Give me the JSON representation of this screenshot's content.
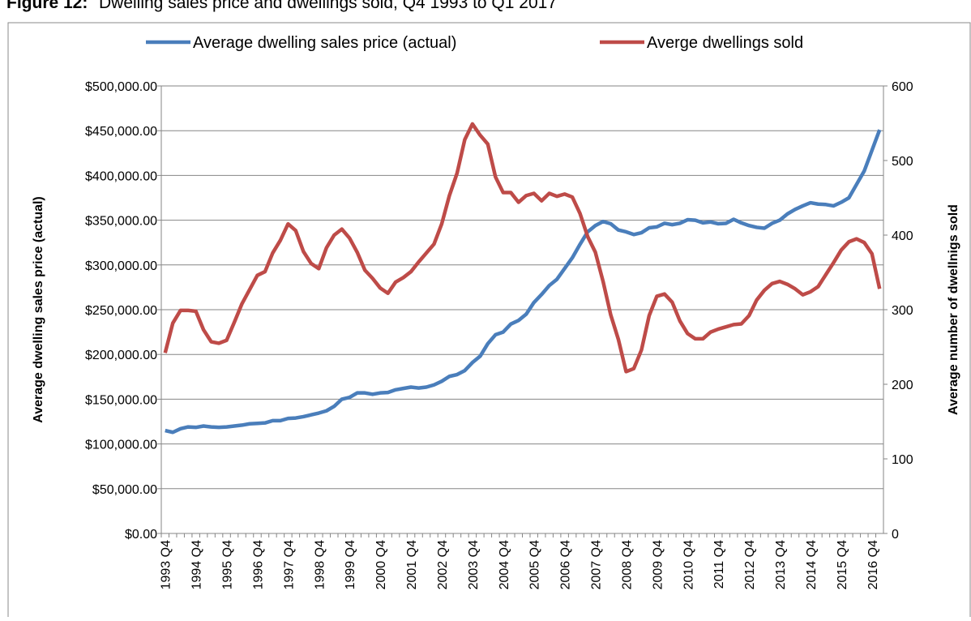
{
  "chart_data": {
    "type": "line",
    "title_label": "Figure 12:",
    "title": "Dwelling sales price and dwellings sold, Q4 1993 to Q1 2017",
    "y_label": "Average dwelling sales price (actual)",
    "y2_label": "Average number of dwellnigs sold",
    "categories": [
      "1993 Q4",
      null,
      null,
      null,
      "1994 Q4",
      null,
      null,
      null,
      "1995 Q4",
      null,
      null,
      null,
      "1996 Q4",
      null,
      null,
      null,
      "1997 Q4",
      null,
      null,
      null,
      "1998 Q4",
      null,
      null,
      null,
      "1999 Q4",
      null,
      null,
      null,
      "2000 Q4",
      null,
      null,
      null,
      "2001 Q4",
      null,
      null,
      null,
      "2002 Q4",
      null,
      null,
      null,
      "2003 Q4",
      null,
      null,
      null,
      "2004 Q4",
      null,
      null,
      null,
      "2005 Q4",
      null,
      null,
      null,
      "2006 Q4",
      null,
      null,
      null,
      "2007 Q4",
      null,
      null,
      null,
      "2008 Q4",
      null,
      null,
      null,
      "2009 Q4",
      null,
      null,
      null,
      "2010 Q4",
      null,
      null,
      null,
      "2011 Q4",
      null,
      null,
      null,
      "2012 Q4",
      null,
      null,
      null,
      "2013 Q4",
      null,
      null,
      null,
      "2014 Q4",
      null,
      null,
      null,
      "2015 Q4",
      null,
      null,
      null,
      "2016 Q4",
      null
    ],
    "series": [
      {
        "name": "Average dwelling sales price (actual)",
        "color": "#4a7ebb",
        "values": [
          115000,
          113000,
          117000,
          119000,
          118500,
          120000,
          119000,
          118500,
          119000,
          120000,
          121000,
          122500,
          123000,
          123500,
          126000,
          126000,
          128500,
          129000,
          130500,
          132500,
          134500,
          137000,
          142000,
          150000,
          152000,
          157000,
          157000,
          155500,
          157000,
          157500,
          160500,
          162000,
          163500,
          162500,
          163500,
          166000,
          170000,
          175500,
          177500,
          182000,
          191000,
          198000,
          212000,
          222000,
          225000,
          234000,
          238000,
          245000,
          258000,
          267000,
          277000,
          284000,
          296000,
          308000,
          323000,
          337000,
          344000,
          348500,
          346000,
          339000,
          337000,
          334000,
          336000,
          341500,
          342500,
          346500,
          345000,
          346500,
          350500,
          350000,
          347000,
          348000,
          346000,
          346500,
          351000,
          347000,
          344000,
          342000,
          341000,
          346500,
          350000,
          357000,
          362000,
          366000,
          369500,
          368000,
          367500,
          366000,
          370000,
          375000,
          390000,
          405000,
          428000,
          451000
        ]
      },
      {
        "name": "Averge dwellings sold",
        "color": "#be4b48",
        "axis": "y2",
        "values": [
          242,
          282,
          299,
          299,
          298,
          273,
          257,
          255,
          259,
          283,
          308,
          327,
          346,
          351,
          376,
          393,
          415,
          406,
          378,
          362,
          355,
          383,
          400,
          408,
          396,
          377,
          353,
          342,
          329,
          322,
          337,
          343,
          351,
          364,
          376,
          388,
          415,
          453,
          483,
          528,
          549,
          534,
          522,
          478,
          457,
          457,
          444,
          453,
          456,
          446,
          456,
          452,
          455,
          451,
          429,
          398,
          377,
          338,
          293,
          260,
          217,
          221,
          246,
          292,
          318,
          321,
          310,
          285,
          268,
          261,
          261,
          270,
          274,
          277,
          280,
          281,
          292,
          313,
          326,
          335,
          338,
          334,
          328,
          320,
          324,
          331,
          347,
          363,
          380,
          391,
          395,
          390,
          375,
          328
        ]
      }
    ],
    "ylim": [
      0,
      500000
    ],
    "yticks": [
      {
        "value": 0,
        "label": "$0.00"
      },
      {
        "value": 50000,
        "label": "$50,000.00"
      },
      {
        "value": 100000,
        "label": "$100,000.00"
      },
      {
        "value": 150000,
        "label": "$150,000.00"
      },
      {
        "value": 200000,
        "label": "$200,000.00"
      },
      {
        "value": 250000,
        "label": "$250,000.00"
      },
      {
        "value": 300000,
        "label": "$300,000.00"
      },
      {
        "value": 350000,
        "label": "$350,000.00"
      },
      {
        "value": 400000,
        "label": "$400,000.00"
      },
      {
        "value": 450000,
        "label": "$450,000.00"
      },
      {
        "value": 500000,
        "label": "$500,000.00"
      }
    ],
    "y2lim": [
      0,
      600
    ],
    "y2ticks": [
      0,
      100,
      200,
      300,
      400,
      500,
      600
    ],
    "grid": true,
    "legend": "top"
  }
}
